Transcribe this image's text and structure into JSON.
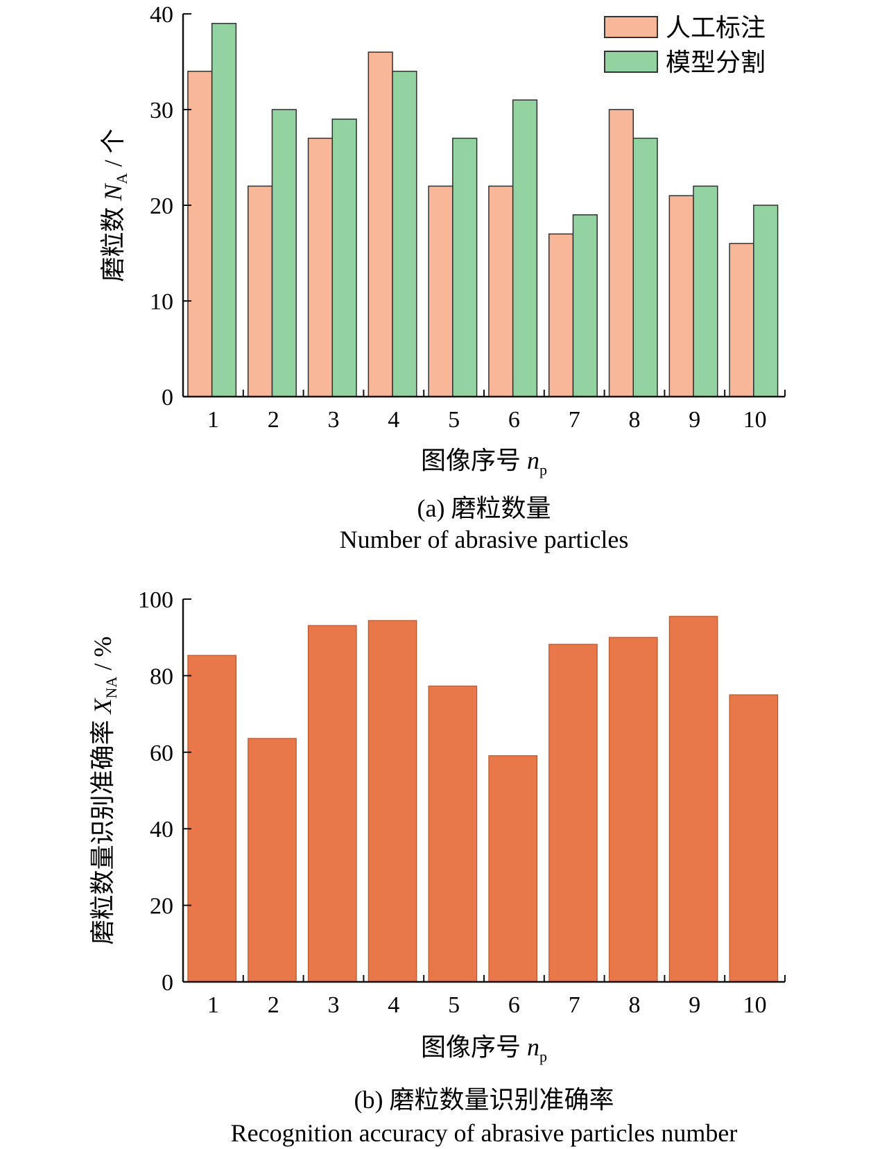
{
  "chart_data": [
    {
      "type": "bar",
      "categories": [
        "1",
        "2",
        "3",
        "4",
        "5",
        "6",
        "7",
        "8",
        "9",
        "10"
      ],
      "series": [
        {
          "name": "人工标注",
          "values": [
            34,
            22,
            27,
            36,
            22,
            22,
            17,
            30,
            21,
            16
          ]
        },
        {
          "name": "模型分割",
          "values": [
            39,
            30,
            29,
            34,
            27,
            31,
            19,
            27,
            22,
            20
          ]
        }
      ],
      "ylim": [
        0,
        40
      ],
      "yticks": [
        "0",
        "10",
        "20",
        "30",
        "40"
      ],
      "ylabel": {
        "main": "磨粒数 ",
        "sym": "N",
        "sub": "A",
        "unit": " / 个"
      },
      "xlabel": {
        "main": "图像序号 ",
        "sym": "n",
        "sub": "p"
      },
      "caption": "(a) 磨粒数量",
      "caption_en": "Number of abrasive particles",
      "legend_position": "top-right",
      "grid": false,
      "colors": {
        "series0": "#F9B79A",
        "series1": "#93D3A2"
      }
    },
    {
      "type": "bar",
      "categories": [
        "1",
        "2",
        "3",
        "4",
        "5",
        "6",
        "7",
        "8",
        "9",
        "10"
      ],
      "values": [
        85.3,
        63.6,
        93.1,
        94.4,
        77.3,
        59.1,
        88.2,
        90.0,
        95.5,
        75.0
      ],
      "ylim": [
        0,
        100
      ],
      "yticks": [
        "0",
        "20",
        "40",
        "60",
        "80",
        "100"
      ],
      "ylabel": {
        "main": "磨粒数量识别准确率 ",
        "sym": "X",
        "sub": "NA",
        "unit": " / %"
      },
      "xlabel": {
        "main": "图像序号 ",
        "sym": "n",
        "sub": "p"
      },
      "caption": "(b) 磨粒数量识别准确率",
      "caption_en": "Recognition accuracy of abrasive particles number",
      "grid": false,
      "colors": {
        "bar": "#E8784A"
      }
    }
  ]
}
